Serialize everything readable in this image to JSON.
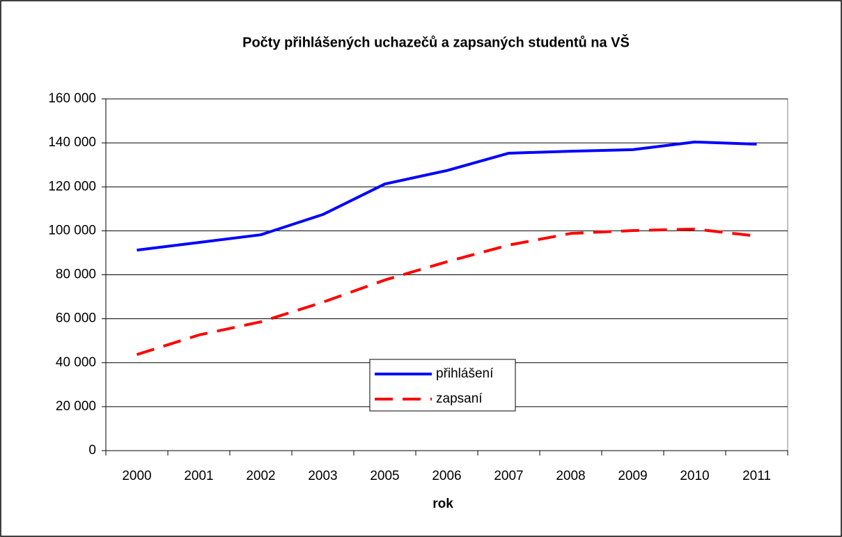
{
  "chart_data": {
    "type": "line",
    "title": "Počty přihlášených uchazečů a zapsaných studentů na VŠ",
    "x_label": "rok",
    "categories": [
      "2000",
      "2001",
      "2002",
      "2003",
      "2005",
      "2006",
      "2007",
      "2008",
      "2009",
      "2010",
      "2011"
    ],
    "series": [
      {
        "name": "přihlášení",
        "color": "#0000ff",
        "dash": false,
        "values": [
          91200,
          94700,
          98200,
          107400,
          121300,
          127400,
          135300,
          136200,
          136900,
          140400,
          139400
        ]
      },
      {
        "name": "zapsaní",
        "color": "#ff0000",
        "dash": true,
        "values": [
          43700,
          52600,
          58600,
          67500,
          77600,
          85900,
          93500,
          98800,
          100100,
          100800,
          97600
        ]
      }
    ],
    "ylim": [
      0,
      160000
    ],
    "yticks": [
      0,
      {
        "value": 20000,
        "label": "20 000"
      },
      {
        "value": 40000,
        "label": "40 000"
      },
      {
        "value": 60000,
        "label": "60 000"
      },
      {
        "value": 80000,
        "label": "80 000"
      },
      {
        "value": 100000,
        "label": "100 000"
      },
      {
        "value": 120000,
        "label": "120 000"
      },
      {
        "value": 140000,
        "label": "140 000"
      },
      {
        "value": 160000,
        "label": "160 000"
      }
    ],
    "grid": true
  }
}
